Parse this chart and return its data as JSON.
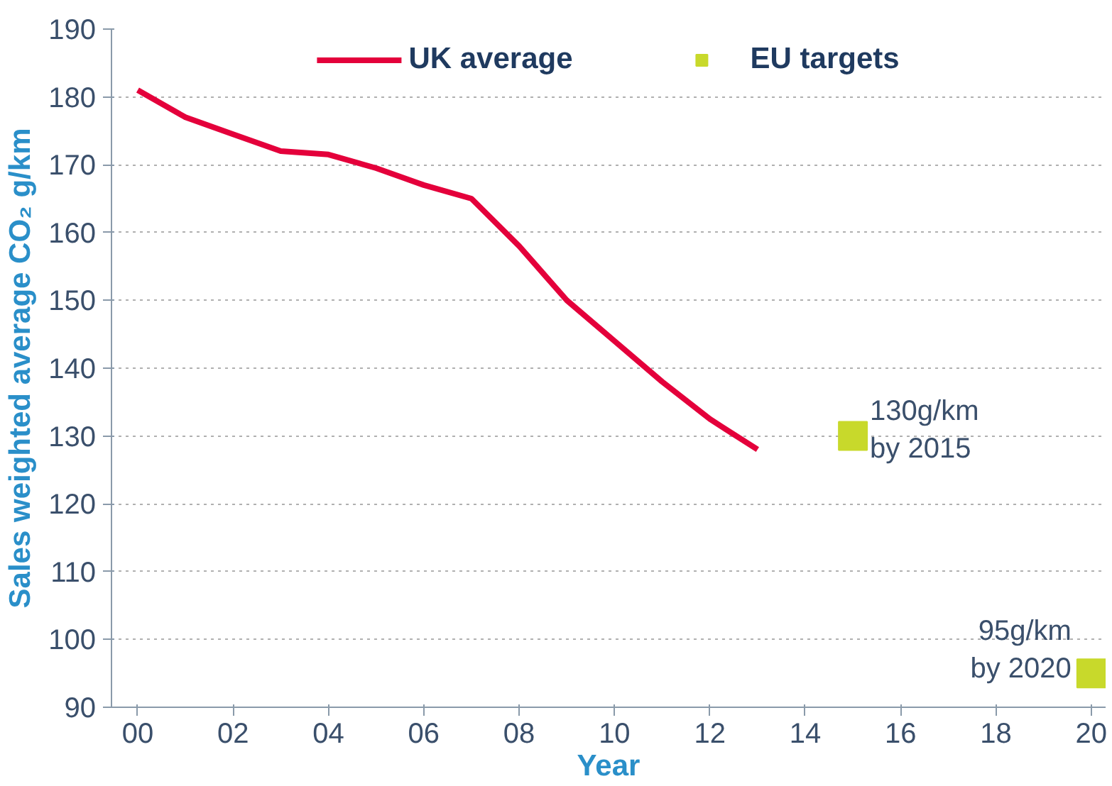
{
  "chart_data": {
    "type": "line",
    "xlabel": "Year",
    "ylabel": "Sales weighted average CO₂ g/km",
    "xlim": [
      1999.45,
      2020.3
    ],
    "ylim": [
      90,
      190
    ],
    "xticks": [
      {
        "value": 2000,
        "label": "00"
      },
      {
        "value": 2002,
        "label": "02"
      },
      {
        "value": 2004,
        "label": "04"
      },
      {
        "value": 2006,
        "label": "06"
      },
      {
        "value": 2008,
        "label": "08"
      },
      {
        "value": 2010,
        "label": "10"
      },
      {
        "value": 2012,
        "label": "12"
      },
      {
        "value": 2014,
        "label": "14"
      },
      {
        "value": 2016,
        "label": "16"
      },
      {
        "value": 2018,
        "label": "18"
      },
      {
        "value": 2020,
        "label": "20"
      }
    ],
    "yticks": [
      90,
      100,
      110,
      120,
      130,
      140,
      150,
      160,
      170,
      180,
      190
    ],
    "grid": "y",
    "legend": "top",
    "series": [
      {
        "name": "UK average",
        "color": "#e4003b",
        "x": [
          2000,
          2001,
          2002,
          2003,
          2004,
          2005,
          2006,
          2007,
          2008,
          2009,
          2010,
          2011,
          2012,
          2013
        ],
        "values": [
          181,
          177,
          174.5,
          172,
          171.5,
          169.5,
          167,
          165,
          158,
          150,
          144,
          138,
          132.5,
          128
        ]
      },
      {
        "name": "EU targets",
        "type": "scatter",
        "marker": "square",
        "color": "#c8d92b",
        "x": [
          2015,
          2020
        ],
        "values": [
          130,
          95
        ]
      }
    ],
    "annotations": [
      {
        "text": "130g/km\nby 2015",
        "x": 2015,
        "y": 130
      },
      {
        "text": "95g/km\nby 2020",
        "x": 2020,
        "y": 95
      }
    ]
  }
}
